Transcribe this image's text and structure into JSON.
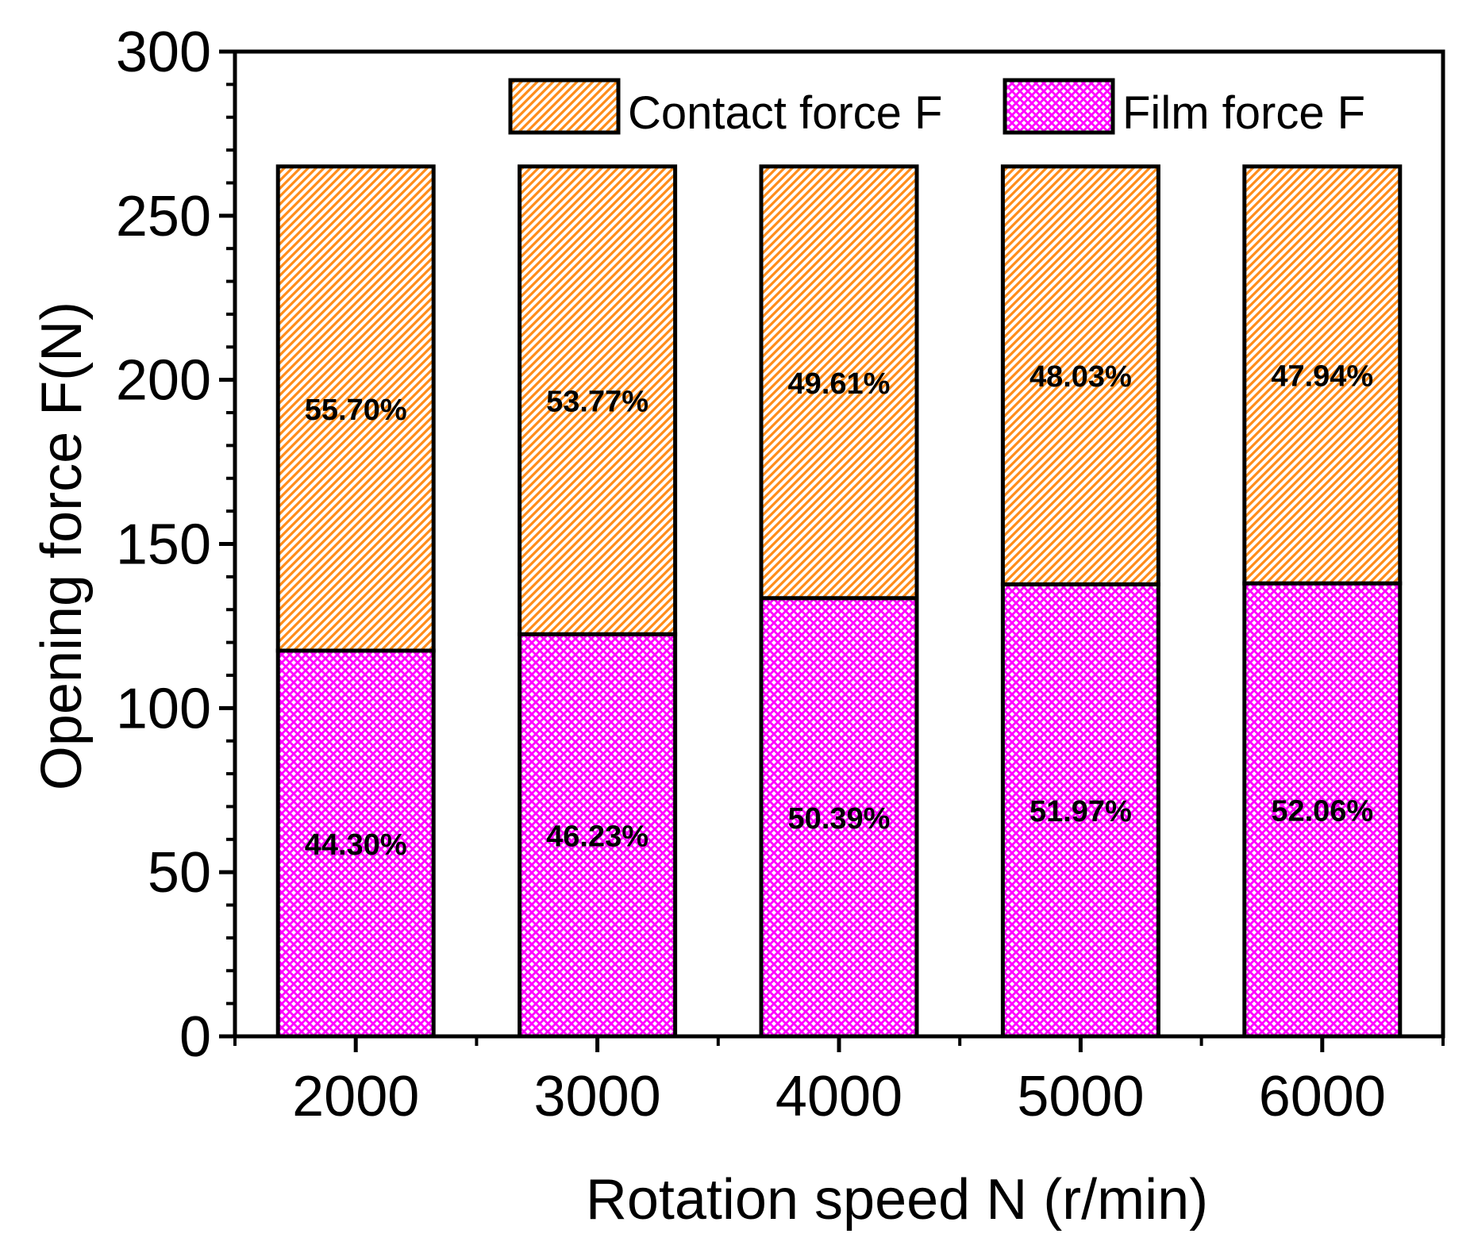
{
  "chart_data": {
    "type": "bar",
    "stacked": true,
    "title": "",
    "xlabel": "Rotation speed N (r/min)",
    "ylabel": "Opening force F(N)",
    "categories": [
      "2000",
      "3000",
      "4000",
      "5000",
      "6000"
    ],
    "ylim": [
      0,
      300
    ],
    "yticks": [
      0,
      50,
      100,
      150,
      200,
      250,
      300
    ],
    "ytick_labels": [
      "0",
      "50",
      "100",
      "150",
      "200",
      "250",
      "300"
    ],
    "grid": false,
    "legend_position": "top-right",
    "series": [
      {
        "name": "Film force F",
        "color": "#ff00ff",
        "pattern": "crosshatch",
        "values": [
          117.5,
          122.5,
          133.5,
          137.7,
          138.0
        ],
        "labels": [
          "44.30%",
          "46.23%",
          "50.39%",
          "51.97%",
          "52.06%"
        ]
      },
      {
        "name": "Contact force F",
        "color": "#ff8c1a",
        "pattern": "diagonal",
        "values": [
          147.5,
          142.5,
          131.5,
          127.3,
          127.0
        ],
        "labels": [
          "55.70%",
          "53.77%",
          "49.61%",
          "48.03%",
          "47.94%"
        ]
      }
    ]
  }
}
